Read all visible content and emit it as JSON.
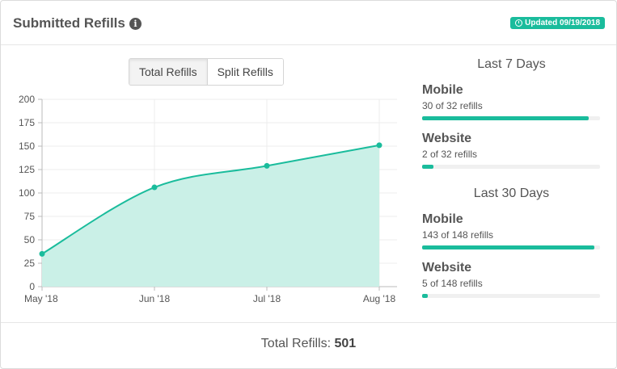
{
  "header": {
    "title": "Submitted Refills",
    "info_glyph": "i",
    "info_icon": "info-circle-icon",
    "updated_label": "Updated 09/19/2018",
    "updated_icon": "clock-icon",
    "badge_color": "#1abc9c"
  },
  "tabs": [
    {
      "label": "Total Refills",
      "active": true
    },
    {
      "label": "Split Refills",
      "active": false
    }
  ],
  "chart_data": {
    "type": "area",
    "categories": [
      "May '18",
      "Jun '18",
      "Jul '18",
      "Aug '18"
    ],
    "values": [
      35,
      106,
      129,
      151
    ],
    "ylim": [
      0,
      200
    ],
    "yticks": [
      0,
      25,
      50,
      75,
      100,
      125,
      150,
      175,
      200
    ],
    "grid": true,
    "line_color": "#1abc9c",
    "fill_color": "#caf0e7"
  },
  "last7": {
    "title": "Last 7 Days",
    "items": [
      {
        "name": "Mobile",
        "detail": "30 of 32 refills",
        "count": 30,
        "total": 32
      },
      {
        "name": "Website",
        "detail": "2 of 32 refills",
        "count": 2,
        "total": 32
      }
    ]
  },
  "last30": {
    "title": "Last 30 Days",
    "items": [
      {
        "name": "Mobile",
        "detail": "143 of 148 refills",
        "count": 143,
        "total": 148
      },
      {
        "name": "Website",
        "detail": "5 of 148 refills",
        "count": 5,
        "total": 148
      }
    ]
  },
  "footer": {
    "label": "Total Refills:",
    "value": "501"
  }
}
